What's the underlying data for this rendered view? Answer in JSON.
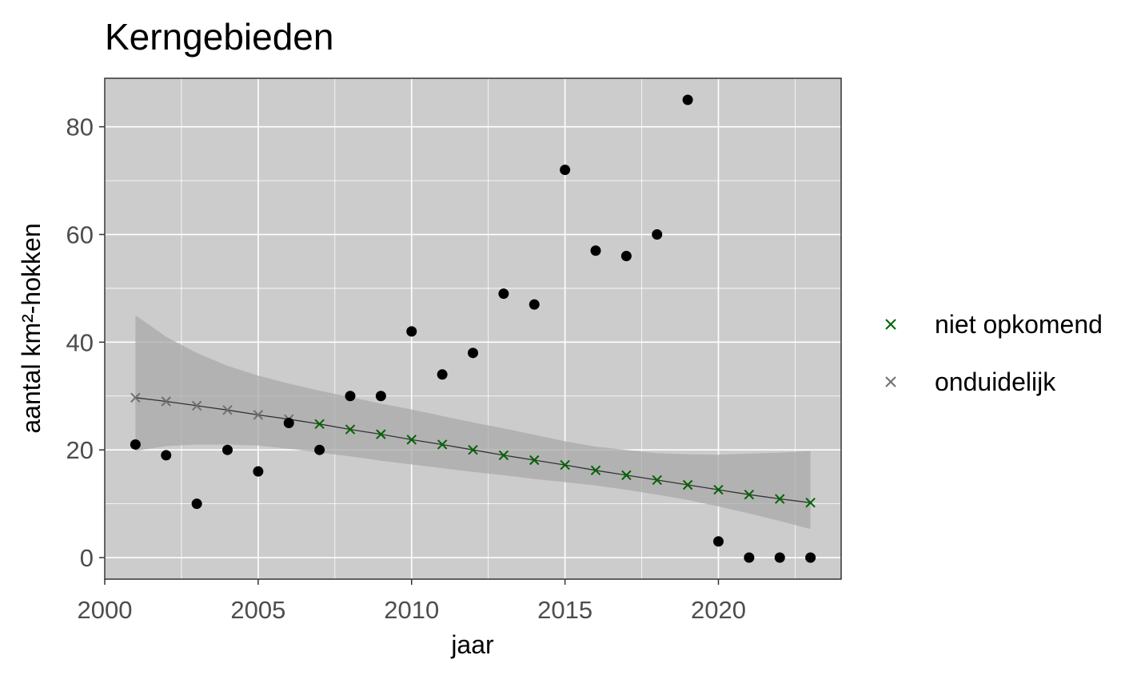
{
  "chart_data": {
    "type": "scatter",
    "title": "Kerngebieden",
    "xlabel": "jaar",
    "ylabel": "aantal km²-hokken",
    "xlim": [
      2000,
      2024
    ],
    "ylim": [
      -4,
      89
    ],
    "x_ticks": [
      2000,
      2005,
      2010,
      2015,
      2020
    ],
    "y_ticks": [
      0,
      20,
      40,
      60,
      80
    ],
    "grid": true,
    "legend_position": "right",
    "colors": {
      "panel_background": "#cccccc",
      "grid": "#ffffff",
      "points": "#000000",
      "ribbon": "#a9a9a9",
      "trend_line": "#333333",
      "niet opkomend": "#006400",
      "onduidelijk": "#707070"
    },
    "observed": {
      "x": [
        2001,
        2002,
        2003,
        2004,
        2005,
        2006,
        2007,
        2008,
        2009,
        2010,
        2011,
        2012,
        2013,
        2014,
        2015,
        2016,
        2017,
        2018,
        2019,
        2020,
        2021,
        2022,
        2023
      ],
      "y": [
        21,
        19,
        10,
        20,
        16,
        25,
        20,
        30,
        30,
        42,
        34,
        38,
        49,
        47,
        72,
        57,
        56,
        60,
        85,
        3,
        0,
        0,
        0
      ]
    },
    "trend": {
      "x": [
        2001,
        2002,
        2003,
        2004,
        2005,
        2006,
        2007,
        2008,
        2009,
        2010,
        2011,
        2012,
        2013,
        2014,
        2015,
        2016,
        2017,
        2018,
        2019,
        2020,
        2021,
        2022,
        2023
      ],
      "fit": [
        29.7,
        29.0,
        28.2,
        27.4,
        26.5,
        25.7,
        24.8,
        23.8,
        22.9,
        21.9,
        21.0,
        20.0,
        19.0,
        18.1,
        17.2,
        16.2,
        15.3,
        14.4,
        13.5,
        12.6,
        11.7,
        10.9,
        10.2
      ],
      "lower": [
        19.8,
        20.7,
        21.0,
        21.0,
        20.8,
        20.2,
        19.5,
        18.8,
        18.0,
        17.3,
        16.6,
        15.9,
        15.3,
        14.6,
        14.0,
        13.4,
        12.6,
        11.7,
        10.7,
        9.5,
        8.2,
        6.8,
        5.3
      ],
      "upper": [
        45.0,
        41.0,
        38.0,
        35.6,
        33.8,
        32.3,
        31.0,
        29.8,
        28.6,
        27.5,
        26.3,
        25.1,
        24.0,
        22.8,
        21.6,
        20.6,
        20.0,
        19.4,
        19.2,
        19.1,
        19.3,
        19.5,
        19.8
      ],
      "category": [
        "onduidelijk",
        "onduidelijk",
        "onduidelijk",
        "onduidelijk",
        "onduidelijk",
        "onduidelijk",
        "niet opkomend",
        "niet opkomend",
        "niet opkomend",
        "niet opkomend",
        "niet opkomend",
        "niet opkomend",
        "niet opkomend",
        "niet opkomend",
        "niet opkomend",
        "niet opkomend",
        "niet opkomend",
        "niet opkomend",
        "niet opkomend",
        "niet opkomend",
        "niet opkomend",
        "niet opkomend",
        "niet opkomend"
      ]
    },
    "legend": [
      {
        "name": "niet opkomend",
        "symbol": "×"
      },
      {
        "name": "onduidelijk",
        "symbol": "×"
      }
    ]
  }
}
